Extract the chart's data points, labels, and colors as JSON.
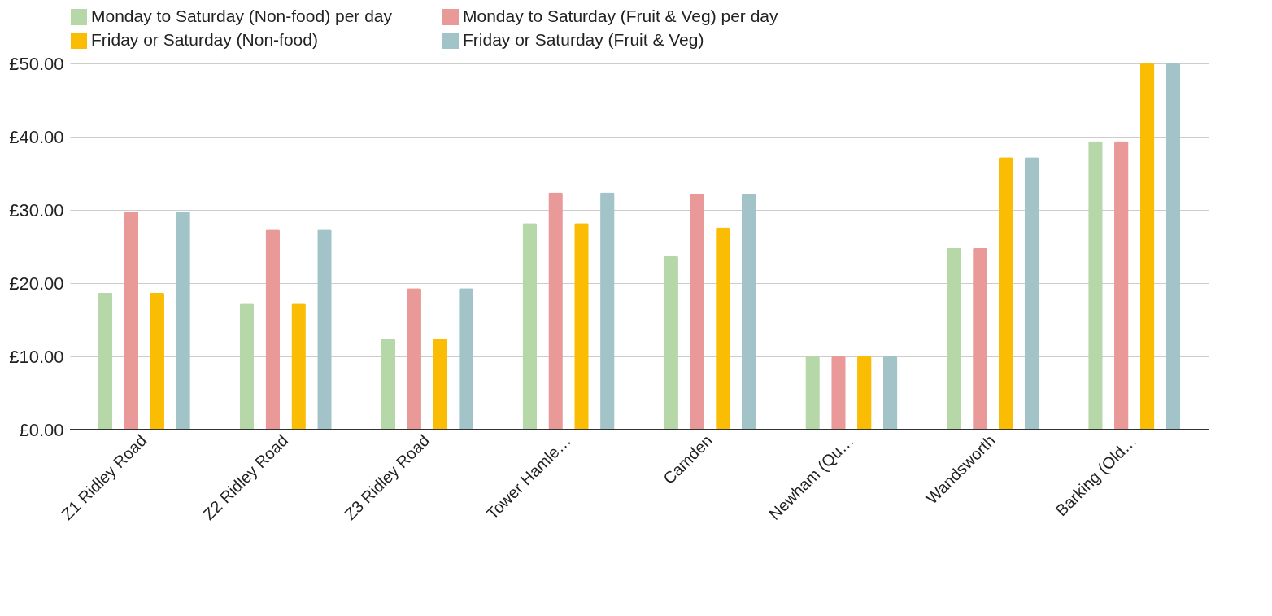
{
  "chart_data": {
    "type": "bar",
    "categories": [
      "Z1 Ridley Road",
      "Z2 Ridley Road",
      "Z3 Ridley Road",
      "Tower Hamle…",
      "Camden",
      "Newham (Qu…",
      "Wandsworth",
      "Barking (Old…"
    ],
    "series": [
      {
        "name": "Monday to Saturday (Non-food) per day",
        "color": "#b6d7a8",
        "values": [
          18.7,
          17.3,
          12.4,
          28.2,
          23.7,
          10,
          24.8,
          39.4
        ]
      },
      {
        "name": "Monday to Saturday (Fruit & Veg) per day",
        "color": "#ea9999",
        "values": [
          29.8,
          27.3,
          19.3,
          32.4,
          32.2,
          10,
          24.8,
          39.4
        ]
      },
      {
        "name": "Friday or Saturday (Non-food)",
        "color": "#fbbc04",
        "values": [
          18.7,
          17.3,
          12.4,
          28.2,
          27.6,
          10,
          37.2,
          50
        ]
      },
      {
        "name": "Friday or Saturday (Fruit & Veg)",
        "color": "#a2c4c9",
        "values": [
          29.8,
          27.3,
          19.3,
          32.4,
          32.2,
          10,
          37.2,
          50
        ]
      }
    ],
    "ylim": [
      0,
      50
    ],
    "yticks": [
      {
        "value": 0,
        "label": "£0.00"
      },
      {
        "value": 10,
        "label": "£10.00"
      },
      {
        "value": 20,
        "label": "£20.00"
      },
      {
        "value": 30,
        "label": "£30.00"
      },
      {
        "value": 40,
        "label": "£40.00"
      },
      {
        "value": 50,
        "label": "£50.00"
      }
    ],
    "grid": "y",
    "legend": "top"
  }
}
